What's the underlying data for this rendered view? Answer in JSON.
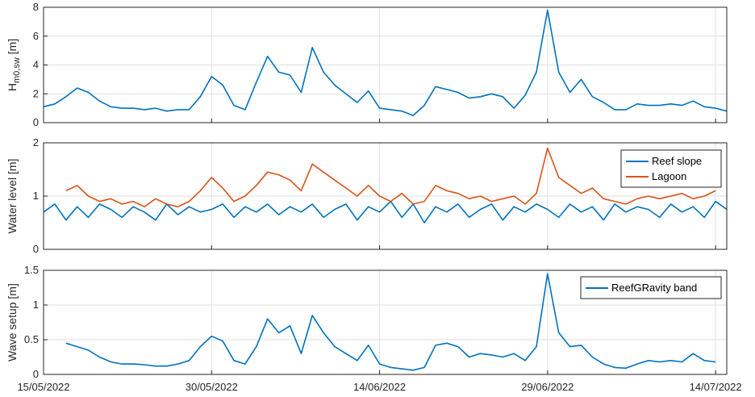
{
  "chart_data": [
    {
      "type": "line",
      "ylabel": "H",
      "ylabel_sub": "m0,sw",
      "ylabel_unit": " [m]",
      "ylim": [
        0,
        8
      ],
      "yticks": [
        "0",
        "2",
        "4",
        "6",
        "8"
      ],
      "xlim": [
        "15/05/2022",
        "15/07/2022"
      ],
      "grid": true,
      "series": [
        {
          "color": "#0072BD",
          "x": [
            "15/05/2022",
            "16/05/2022",
            "17/05/2022",
            "18/05/2022",
            "19/05/2022",
            "20/05/2022",
            "21/05/2022",
            "22/05/2022",
            "23/05/2022",
            "24/05/2022",
            "25/05/2022",
            "26/05/2022",
            "27/05/2022",
            "28/05/2022",
            "29/05/2022",
            "30/05/2022",
            "31/05/2022",
            "01/06/2022",
            "02/06/2022",
            "03/06/2022",
            "04/06/2022",
            "05/06/2022",
            "06/06/2022",
            "07/06/2022",
            "08/06/2022",
            "09/06/2022",
            "10/06/2022",
            "11/06/2022",
            "12/06/2022",
            "13/06/2022",
            "14/06/2022",
            "15/06/2022",
            "16/06/2022",
            "17/06/2022",
            "18/06/2022",
            "19/06/2022",
            "20/06/2022",
            "21/06/2022",
            "22/06/2022",
            "23/06/2022",
            "24/06/2022",
            "25/06/2022",
            "26/06/2022",
            "27/06/2022",
            "28/06/2022",
            "29/06/2022",
            "30/06/2022",
            "01/07/2022",
            "02/07/2022",
            "03/07/2022",
            "04/07/2022",
            "05/07/2022",
            "06/07/2022",
            "07/07/2022",
            "08/07/2022",
            "09/07/2022",
            "10/07/2022",
            "11/07/2022",
            "12/07/2022",
            "13/07/2022",
            "14/07/2022",
            "15/07/2022"
          ],
          "y": [
            1.1,
            1.3,
            1.8,
            2.4,
            2.1,
            1.5,
            1.1,
            1.0,
            1.0,
            0.9,
            1.0,
            0.8,
            0.9,
            0.9,
            1.8,
            3.2,
            2.6,
            1.2,
            0.9,
            2.8,
            4.6,
            3.5,
            3.3,
            2.1,
            5.2,
            3.5,
            2.6,
            2.0,
            1.4,
            2.2,
            1.0,
            0.9,
            0.8,
            0.5,
            1.2,
            2.5,
            2.3,
            2.1,
            1.7,
            1.8,
            2.0,
            1.8,
            1.0,
            1.9,
            3.5,
            7.8,
            3.5,
            2.1,
            3.0,
            1.8,
            1.4,
            0.9,
            0.9,
            1.3,
            1.2,
            1.2,
            1.3,
            1.2,
            1.5,
            1.1,
            1.0,
            0.8
          ]
        }
      ]
    },
    {
      "type": "line",
      "ylabel": "Water level [m]",
      "ylim": [
        0,
        2
      ],
      "yticks": [
        "0",
        "1",
        "2"
      ],
      "xlim": [
        "15/05/2022",
        "15/07/2022"
      ],
      "grid": true,
      "legend": "top-right",
      "series": [
        {
          "name": "Reef slope",
          "color": "#0072BD",
          "x": [
            "15/05/2022",
            "16/05/2022",
            "17/05/2022",
            "18/05/2022",
            "19/05/2022",
            "20/05/2022",
            "21/05/2022",
            "22/05/2022",
            "23/05/2022",
            "24/05/2022",
            "25/05/2022",
            "26/05/2022",
            "27/05/2022",
            "28/05/2022",
            "29/05/2022",
            "30/05/2022",
            "31/05/2022",
            "01/06/2022",
            "02/06/2022",
            "03/06/2022",
            "04/06/2022",
            "05/06/2022",
            "06/06/2022",
            "07/06/2022",
            "08/06/2022",
            "09/06/2022",
            "10/06/2022",
            "11/06/2022",
            "12/06/2022",
            "13/06/2022",
            "14/06/2022",
            "15/06/2022",
            "16/06/2022",
            "17/06/2022",
            "18/06/2022",
            "19/06/2022",
            "20/06/2022",
            "21/06/2022",
            "22/06/2022",
            "23/06/2022",
            "24/06/2022",
            "25/06/2022",
            "26/06/2022",
            "27/06/2022",
            "28/06/2022",
            "29/06/2022",
            "30/06/2022",
            "01/07/2022",
            "02/07/2022",
            "03/07/2022",
            "04/07/2022",
            "05/07/2022",
            "06/07/2022",
            "07/07/2022",
            "08/07/2022",
            "09/07/2022",
            "10/07/2022",
            "11/07/2022",
            "12/07/2022",
            "13/07/2022",
            "14/07/2022",
            "15/07/2022"
          ],
          "y": [
            0.7,
            0.85,
            0.55,
            0.8,
            0.6,
            0.85,
            0.75,
            0.6,
            0.8,
            0.7,
            0.55,
            0.85,
            0.65,
            0.8,
            0.7,
            0.75,
            0.85,
            0.6,
            0.8,
            0.7,
            0.85,
            0.65,
            0.8,
            0.7,
            0.85,
            0.6,
            0.75,
            0.85,
            0.55,
            0.8,
            0.7,
            0.9,
            0.6,
            0.85,
            0.5,
            0.8,
            0.7,
            0.85,
            0.6,
            0.75,
            0.85,
            0.55,
            0.8,
            0.7,
            0.85,
            0.75,
            0.6,
            0.85,
            0.7,
            0.8,
            0.55,
            0.85,
            0.7,
            0.8,
            0.75,
            0.6,
            0.85,
            0.7,
            0.8,
            0.6,
            0.9,
            0.75
          ]
        },
        {
          "name": "Lagoon",
          "color": "#D95319",
          "x": [
            "17/05/2022",
            "18/05/2022",
            "19/05/2022",
            "20/05/2022",
            "21/05/2022",
            "22/05/2022",
            "23/05/2022",
            "24/05/2022",
            "25/05/2022",
            "26/05/2022",
            "27/05/2022",
            "28/05/2022",
            "29/05/2022",
            "30/05/2022",
            "31/05/2022",
            "01/06/2022",
            "02/06/2022",
            "03/06/2022",
            "04/06/2022",
            "05/06/2022",
            "06/06/2022",
            "07/06/2022",
            "08/06/2022",
            "09/06/2022",
            "10/06/2022",
            "11/06/2022",
            "12/06/2022",
            "13/06/2022",
            "14/06/2022",
            "15/06/2022",
            "16/06/2022",
            "17/06/2022",
            "18/06/2022",
            "19/06/2022",
            "20/06/2022",
            "21/06/2022",
            "22/06/2022",
            "23/06/2022",
            "24/06/2022",
            "25/06/2022",
            "26/06/2022",
            "27/06/2022",
            "28/06/2022",
            "29/06/2022",
            "30/06/2022",
            "01/07/2022",
            "02/07/2022",
            "03/07/2022",
            "04/07/2022",
            "05/07/2022",
            "06/07/2022",
            "07/07/2022",
            "08/07/2022",
            "09/07/2022",
            "10/07/2022",
            "11/07/2022",
            "12/07/2022",
            "13/07/2022",
            "14/07/2022"
          ],
          "y": [
            1.1,
            1.2,
            1.0,
            0.9,
            0.95,
            0.85,
            0.9,
            0.8,
            0.95,
            0.85,
            0.8,
            0.9,
            1.1,
            1.35,
            1.15,
            0.9,
            1.0,
            1.2,
            1.45,
            1.4,
            1.3,
            1.1,
            1.6,
            1.45,
            1.3,
            1.15,
            1.0,
            1.2,
            1.0,
            0.9,
            1.05,
            0.85,
            0.9,
            1.2,
            1.1,
            1.05,
            0.95,
            1.0,
            0.9,
            0.95,
            1.0,
            0.85,
            1.05,
            1.9,
            1.35,
            1.2,
            1.05,
            1.15,
            0.95,
            0.9,
            0.85,
            0.95,
            1.0,
            0.95,
            1.0,
            1.05,
            0.95,
            1.0,
            1.1
          ]
        }
      ]
    },
    {
      "type": "line",
      "ylabel": "Wave setup [m]",
      "ylim": [
        0,
        1.5
      ],
      "yticks": [
        "0",
        "0.5",
        "1",
        "1.5"
      ],
      "xlim": [
        "15/05/2022",
        "15/07/2022"
      ],
      "xticks": [
        "15/05/2022",
        "30/05/2022",
        "14/06/2022",
        "29/06/2022",
        "14/07/2022"
      ],
      "grid": true,
      "legend": "top-right",
      "series": [
        {
          "name": "ReefGRavity band",
          "color": "#0072BD",
          "x": [
            "17/05/2022",
            "18/05/2022",
            "19/05/2022",
            "20/05/2022",
            "21/05/2022",
            "22/05/2022",
            "23/05/2022",
            "24/05/2022",
            "25/05/2022",
            "26/05/2022",
            "27/05/2022",
            "28/05/2022",
            "29/05/2022",
            "30/05/2022",
            "31/05/2022",
            "01/06/2022",
            "02/06/2022",
            "03/06/2022",
            "04/06/2022",
            "05/06/2022",
            "06/06/2022",
            "07/06/2022",
            "08/06/2022",
            "09/06/2022",
            "10/06/2022",
            "11/06/2022",
            "12/06/2022",
            "13/06/2022",
            "14/06/2022",
            "15/06/2022",
            "16/06/2022",
            "17/06/2022",
            "18/06/2022",
            "19/06/2022",
            "20/06/2022",
            "21/06/2022",
            "22/06/2022",
            "23/06/2022",
            "24/06/2022",
            "25/06/2022",
            "26/06/2022",
            "27/06/2022",
            "28/06/2022",
            "29/06/2022",
            "30/06/2022",
            "01/07/2022",
            "02/07/2022",
            "03/07/2022",
            "04/07/2022",
            "05/07/2022",
            "06/07/2022",
            "07/07/2022",
            "08/07/2022",
            "09/07/2022",
            "10/07/2022",
            "11/07/2022",
            "12/07/2022",
            "13/07/2022",
            "14/07/2022"
          ],
          "y": [
            0.45,
            0.4,
            0.35,
            0.25,
            0.18,
            0.15,
            0.15,
            0.14,
            0.12,
            0.12,
            0.15,
            0.2,
            0.4,
            0.55,
            0.48,
            0.2,
            0.15,
            0.4,
            0.8,
            0.6,
            0.7,
            0.3,
            0.85,
            0.6,
            0.4,
            0.3,
            0.2,
            0.42,
            0.15,
            0.1,
            0.08,
            0.06,
            0.1,
            0.42,
            0.45,
            0.4,
            0.25,
            0.3,
            0.28,
            0.25,
            0.3,
            0.2,
            0.4,
            1.45,
            0.6,
            0.4,
            0.42,
            0.25,
            0.15,
            0.1,
            0.09,
            0.15,
            0.2,
            0.18,
            0.2,
            0.18,
            0.3,
            0.2,
            0.18
          ]
        }
      ]
    }
  ]
}
